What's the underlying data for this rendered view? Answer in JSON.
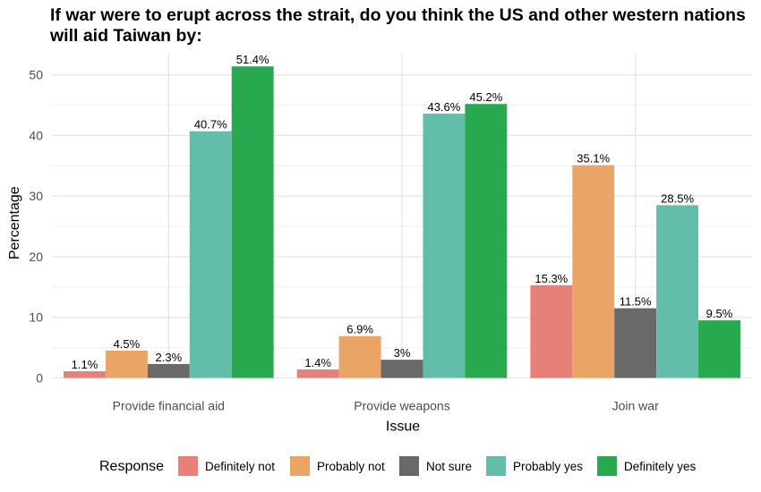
{
  "chart_data": {
    "type": "bar",
    "title": "If war were to erupt across the strait, do you think the US and other western nations will aid Taiwan by:",
    "xlabel": "Issue",
    "ylabel": "Percentage",
    "ylim": [
      0,
      53.5
    ],
    "yticks": [
      "0",
      "10",
      "20",
      "30",
      "40",
      "50"
    ],
    "grid": true,
    "legend_title": "Response",
    "legend_position": "bottom",
    "categories": [
      "Provide financial aid",
      "Provide weapons",
      "Join war"
    ],
    "series": [
      {
        "name": "Definitely not",
        "color": "#E8807A",
        "values": [
          1.1,
          1.4,
          15.3
        ],
        "labels": [
          "1.1%",
          "1.4%",
          "15.3%"
        ]
      },
      {
        "name": "Probably not",
        "color": "#EAA566",
        "values": [
          4.5,
          6.9,
          35.1
        ],
        "labels": [
          "4.5%",
          "6.9%",
          "35.1%"
        ]
      },
      {
        "name": "Not sure",
        "color": "#696969",
        "values": [
          2.3,
          3,
          11.5
        ],
        "labels": [
          "2.3%",
          "3%",
          "11.5%"
        ]
      },
      {
        "name": "Probably yes",
        "color": "#62BEA9",
        "values": [
          40.7,
          43.6,
          28.5
        ],
        "labels": [
          "40.7%",
          "43.6%",
          "28.5%"
        ]
      },
      {
        "name": "Definitely yes",
        "color": "#28A950",
        "values": [
          51.4,
          45.2,
          9.5
        ],
        "labels": [
          "51.4%",
          "45.2%",
          "9.5%"
        ]
      }
    ]
  }
}
